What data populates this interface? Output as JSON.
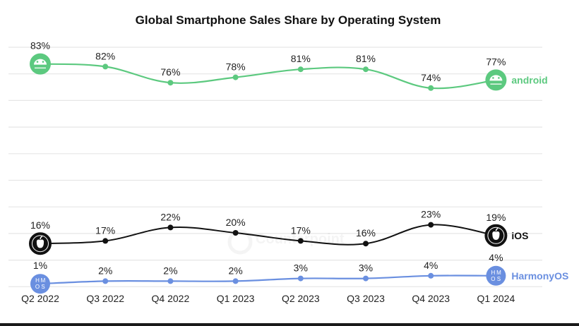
{
  "chart_data": {
    "type": "line",
    "title": "Global Smartphone Sales Share by Operating System",
    "xlabel": "",
    "ylabel": "",
    "ylim": [
      0,
      90
    ],
    "grid": true,
    "value_suffix": "%",
    "categories": [
      "Q2 2022",
      "Q3 2022",
      "Q4 2022",
      "Q1 2023",
      "Q2 2023",
      "Q3 2023",
      "Q4 2023",
      "Q1 2024"
    ],
    "series": [
      {
        "name": "android",
        "color": "#5cc97f",
        "icon": "android-icon",
        "values": [
          83,
          82,
          76,
          78,
          81,
          81,
          74,
          77
        ]
      },
      {
        "name": "iOS",
        "color": "#111111",
        "icon": "apple-icon",
        "values": [
          16,
          17,
          22,
          20,
          17,
          16,
          23,
          19
        ]
      },
      {
        "name": "HarmonyOS",
        "color": "#6a8fe0",
        "icon": "harmonyos-icon",
        "values": [
          1,
          2,
          2,
          2,
          3,
          3,
          4,
          4
        ]
      }
    ],
    "legend": "right-end-of-lines",
    "watermark": "Counterpoint"
  }
}
